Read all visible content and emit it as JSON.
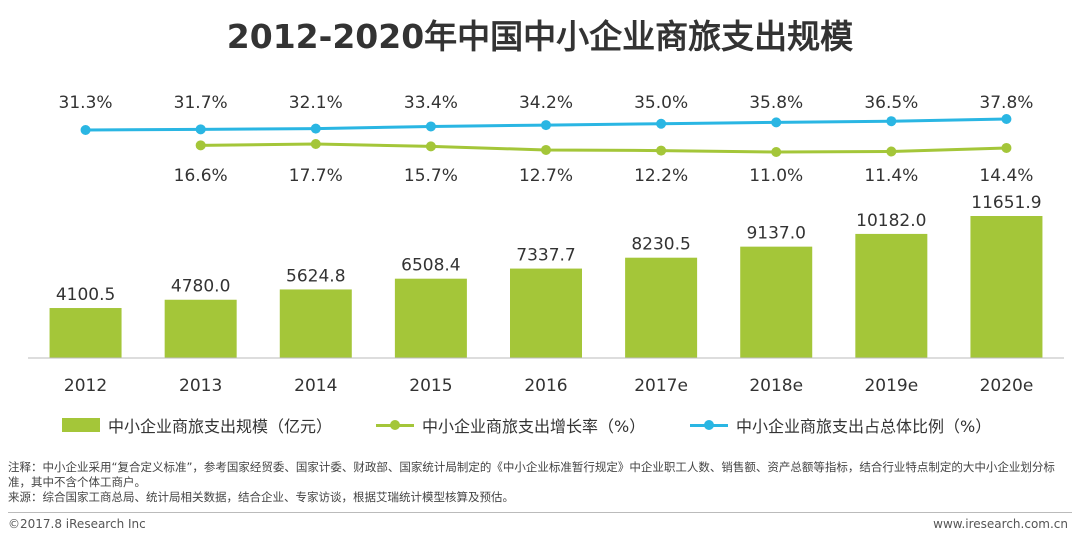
{
  "title": "2012-2020年中国中小企业商旅支出规模",
  "colors": {
    "bar": "#a4c639",
    "growth_line": "#a4c639",
    "share_line": "#2ab6e3",
    "axis": "#bbbbbb"
  },
  "chart_data": {
    "type": "bar",
    "categories": [
      "2012",
      "2013",
      "2014",
      "2015",
      "2016",
      "2017e",
      "2018e",
      "2019e",
      "2020e"
    ],
    "series": [
      {
        "name": "中小企业商旅支出规模（亿元）",
        "type": "bar",
        "values": [
          4100.5,
          4780.0,
          5624.8,
          6508.4,
          7337.7,
          8230.5,
          9137.0,
          10182.0,
          11651.9
        ],
        "labels": [
          "4100.5",
          "4780.0",
          "5624.8",
          "6508.4",
          "7337.7",
          "8230.5",
          "9137.0",
          "10182.0",
          "11651.9"
        ]
      },
      {
        "name": "中小企业商旅支出增长率（%）",
        "type": "line",
        "values": [
          null,
          16.6,
          17.7,
          15.7,
          12.7,
          12.2,
          11.0,
          11.4,
          14.4
        ],
        "labels": [
          "",
          "16.6%",
          "17.7%",
          "15.7%",
          "12.7%",
          "12.2%",
          "11.0%",
          "11.4%",
          "14.4%"
        ]
      },
      {
        "name": "中小企业商旅支出占总体比例（%）",
        "type": "line",
        "values": [
          31.3,
          31.7,
          32.1,
          33.4,
          34.2,
          35.0,
          35.8,
          36.5,
          37.8
        ],
        "labels": [
          "31.3%",
          "31.7%",
          "32.1%",
          "33.4%",
          "34.2%",
          "35.0%",
          "35.8%",
          "36.5%",
          "37.8%"
        ]
      }
    ],
    "legend_position": "bottom",
    "grid": false
  },
  "notes": {
    "note": "注释：中小企业采用“复合定义标准”，参考国家经贸委、国家计委、财政部、国家统计局制定的《中小企业标准暂行规定》中企业职工人数、销售额、资产总额等指标，结合行业特点制定的大中小企业划分标准，其中不含个体工商户。",
    "source": "来源：综合国家工商总局、统计局相关数据，结合企业、专家访谈，根据艾瑞统计模型核算及预估。"
  },
  "footer": {
    "copyright": "©2017.8 iResearch Inc",
    "website": "www.iresearch.com.cn"
  }
}
